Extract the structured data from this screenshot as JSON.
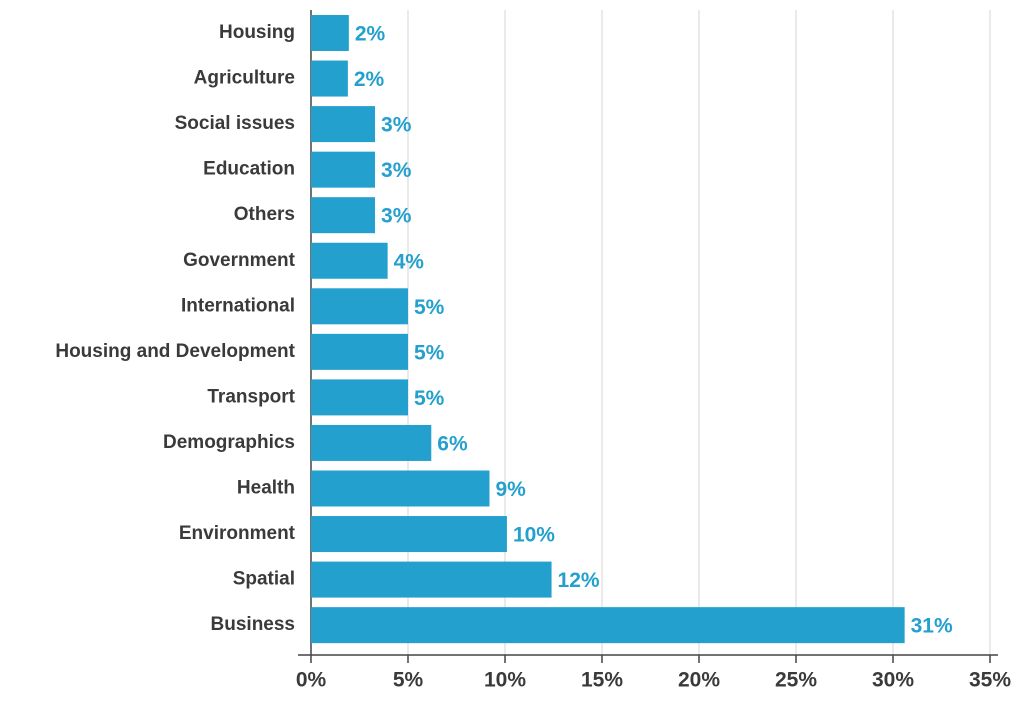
{
  "chart_data": {
    "type": "hbar",
    "categories": [
      "Housing",
      "Agriculture",
      "Social issues",
      "Education",
      "Others",
      "Government",
      "International",
      "Housing and Development",
      "Transport",
      "Demographics",
      "Health",
      "Environment",
      "Spatial",
      "Business"
    ],
    "values": [
      1.95,
      1.9,
      3.3,
      3.3,
      3.3,
      3.95,
      5,
      5,
      5,
      6.2,
      9.2,
      10.1,
      12.4,
      30.6
    ],
    "value_labels": [
      "2%",
      "2%",
      "3%",
      "3%",
      "3%",
      "4%",
      "5%",
      "5%",
      "5%",
      "6%",
      "9%",
      "10%",
      "12%",
      "31%"
    ],
    "color": "#23a0cd",
    "xlim": [
      0,
      35
    ],
    "xticks": [
      {
        "value": 0,
        "label": "0%"
      },
      {
        "value": 5,
        "label": "5%"
      },
      {
        "value": 10,
        "label": "10%"
      },
      {
        "value": 15,
        "label": "15%"
      },
      {
        "value": 20,
        "label": "20%"
      },
      {
        "value": 25,
        "label": "25%"
      },
      {
        "value": 30,
        "label": "30%"
      },
      {
        "value": 35,
        "label": "35%"
      }
    ],
    "grid": true
  }
}
